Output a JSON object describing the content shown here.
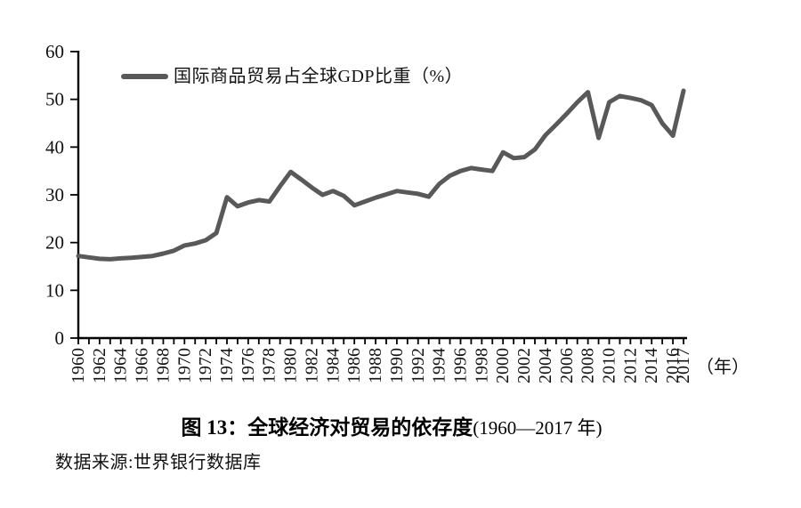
{
  "legend": {
    "label": "国际商品贸易占全球GDP比重（%）"
  },
  "chart_data": {
    "type": "line",
    "title": "",
    "series_name": "国际商品贸易占全球GDP比重（%）",
    "x": [
      1960,
      1961,
      1962,
      1963,
      1964,
      1965,
      1966,
      1967,
      1968,
      1969,
      1970,
      1971,
      1972,
      1973,
      1974,
      1975,
      1976,
      1977,
      1978,
      1979,
      1980,
      1981,
      1982,
      1983,
      1984,
      1985,
      1986,
      1987,
      1988,
      1989,
      1990,
      1991,
      1992,
      1993,
      1994,
      1995,
      1996,
      1997,
      1998,
      1999,
      2000,
      2001,
      2002,
      2003,
      2004,
      2005,
      2006,
      2007,
      2008,
      2009,
      2010,
      2011,
      2012,
      2013,
      2014,
      2015,
      2016,
      2017
    ],
    "values": [
      17.2,
      16.9,
      16.6,
      16.5,
      16.7,
      16.8,
      17.0,
      17.2,
      17.7,
      18.3,
      19.4,
      19.8,
      20.5,
      22.0,
      29.5,
      27.6,
      28.4,
      28.9,
      28.6,
      31.8,
      34.8,
      33.2,
      31.5,
      30.0,
      30.8,
      29.8,
      27.8,
      28.6,
      29.4,
      30.1,
      30.8,
      30.5,
      30.2,
      29.6,
      32.3,
      34.0,
      35.0,
      35.6,
      35.3,
      35.0,
      38.9,
      37.7,
      37.9,
      39.5,
      42.5,
      44.7,
      47.0,
      49.4,
      51.5,
      41.9,
      49.4,
      50.7,
      50.3,
      49.8,
      48.8,
      45.0,
      42.4,
      51.8
    ],
    "x_tick_labels": [
      "1960",
      "1962",
      "1964",
      "1966",
      "1968",
      "1970",
      "1972",
      "1974",
      "1976",
      "1978",
      "1980",
      "1982",
      "1984",
      "1986",
      "1988",
      "1990",
      "1992",
      "1994",
      "1996",
      "1998",
      "2000",
      "2002",
      "2004",
      "2006",
      "2008",
      "2010",
      "2012",
      "2014",
      "2016",
      "2017"
    ],
    "yticks": [
      0,
      10,
      20,
      30,
      40,
      50,
      60
    ],
    "ylim": [
      0,
      60
    ],
    "xlim": [
      1960,
      2017
    ],
    "x_unit_label": "（年）",
    "xlabel": "",
    "ylabel": "",
    "grid": false,
    "legend_position": "top-left",
    "line_color": "#595959",
    "axis_color": "#000000"
  },
  "caption": {
    "title": "图 13：全球经济对贸易的依存度",
    "range": "(1960—2017 年)"
  },
  "source": {
    "text": "数据来源:世界银行数据库"
  }
}
